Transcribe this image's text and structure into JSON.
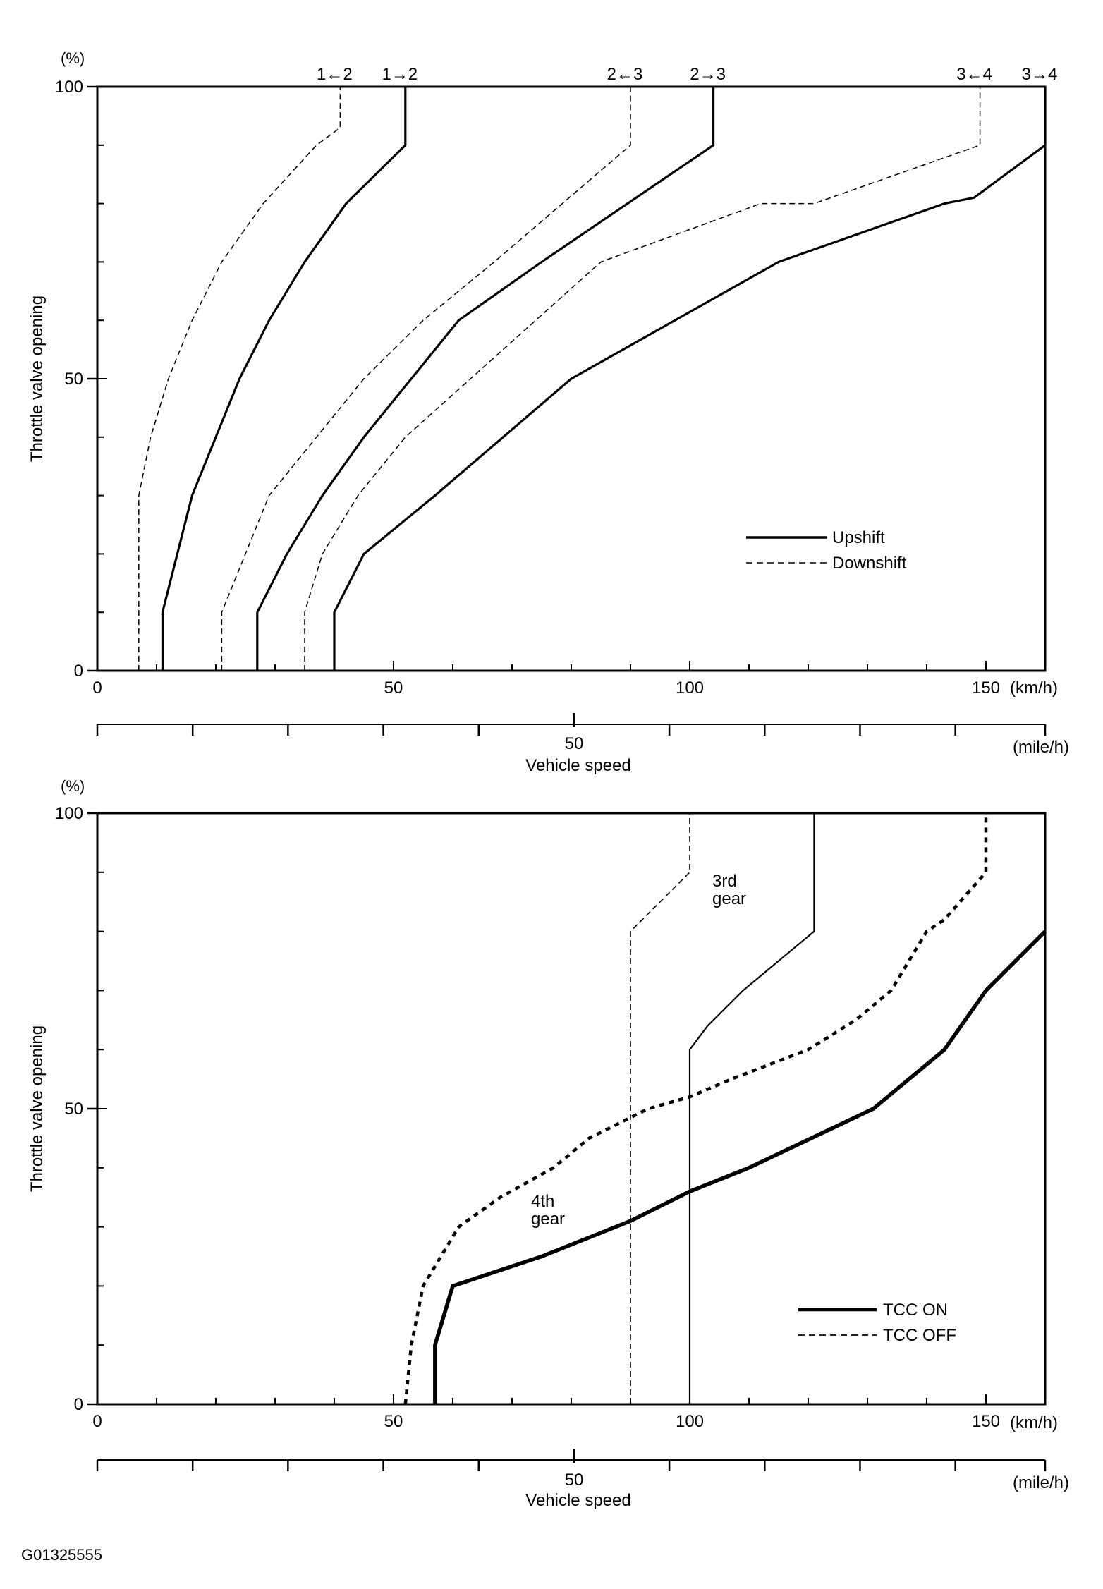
{
  "figure_id": "G01325555",
  "chart_data": [
    {
      "type": "line",
      "ylabel": "Throttle valve opening",
      "y_unit": "(%)",
      "ylim": [
        0,
        100
      ],
      "y_ticks": [
        0,
        50,
        100
      ],
      "xlim": [
        0,
        160
      ],
      "x_ticks": [
        0,
        50,
        100,
        150
      ],
      "x_unit": "(km/h)",
      "x2_ticks": [
        50
      ],
      "x2_unit": "(mile/h)",
      "xlabel": "Vehicle speed",
      "legend": {
        "position": "right-middle",
        "entries": [
          {
            "label": "Upshift",
            "style": "solid"
          },
          {
            "label": "Downshift",
            "style": "dashed"
          }
        ]
      },
      "top_labels": [
        {
          "text": "1←2",
          "x": 41
        },
        {
          "text": "1→2",
          "x": 52
        },
        {
          "text": "2←3",
          "x": 90
        },
        {
          "text": "2→3",
          "x": 104
        },
        {
          "text": "3←4",
          "x": 149
        },
        {
          "text": "3→4",
          "x": 160
        }
      ],
      "series": [
        {
          "label_ref": "1←2",
          "style": "dashed",
          "points": [
            [
              7,
              0
            ],
            [
              7,
              30
            ],
            [
              9,
              40
            ],
            [
              12,
              50
            ],
            [
              16,
              60
            ],
            [
              21,
              70
            ],
            [
              28,
              80
            ],
            [
              37,
              90
            ],
            [
              41,
              93
            ],
            [
              41,
              100
            ]
          ]
        },
        {
          "label_ref": "1→2",
          "style": "solid",
          "points": [
            [
              11,
              0
            ],
            [
              11,
              10
            ],
            [
              16,
              30
            ],
            [
              20,
              40
            ],
            [
              24,
              50
            ],
            [
              29,
              60
            ],
            [
              35,
              70
            ],
            [
              42,
              80
            ],
            [
              52,
              90
            ],
            [
              52,
              100
            ]
          ]
        },
        {
          "label_ref": "2←3",
          "style": "dashed",
          "points": [
            [
              21,
              0
            ],
            [
              21,
              10
            ],
            [
              25,
              20
            ],
            [
              29,
              30
            ],
            [
              37,
              40
            ],
            [
              45,
              50
            ],
            [
              55,
              60
            ],
            [
              67,
              70
            ],
            [
              90,
              90
            ],
            [
              90,
              100
            ]
          ]
        },
        {
          "label_ref": "2→3",
          "style": "solid",
          "points": [
            [
              27,
              0
            ],
            [
              27,
              10
            ],
            [
              32,
              20
            ],
            [
              38,
              30
            ],
            [
              45,
              40
            ],
            [
              53,
              50
            ],
            [
              61,
              60
            ],
            [
              75,
              70
            ],
            [
              104,
              90
            ],
            [
              104,
              100
            ]
          ]
        },
        {
          "label_ref": "3←4",
          "style": "dashed",
          "points": [
            [
              35,
              0
            ],
            [
              35,
              10
            ],
            [
              38,
              20
            ],
            [
              44,
              30
            ],
            [
              52,
              40
            ],
            [
              63,
              50
            ],
            [
              85,
              70
            ],
            [
              112,
              80
            ],
            [
              121,
              80
            ],
            [
              149,
              90
            ],
            [
              149,
              100
            ]
          ]
        },
        {
          "label_ref": "3→4",
          "style": "solid",
          "points": [
            [
              40,
              0
            ],
            [
              40,
              10
            ],
            [
              45,
              20
            ],
            [
              57,
              30
            ],
            [
              80,
              50
            ],
            [
              115,
              70
            ],
            [
              143,
              80
            ],
            [
              148,
              81
            ],
            [
              160,
              90
            ],
            [
              160,
              100
            ]
          ]
        }
      ]
    },
    {
      "type": "line",
      "ylabel": "Throttle valve opening",
      "y_unit": "(%)",
      "ylim": [
        0,
        100
      ],
      "y_ticks": [
        0,
        50,
        100
      ],
      "xlim": [
        0,
        160
      ],
      "x_ticks": [
        0,
        50,
        100,
        150
      ],
      "x_unit": "(km/h)",
      "x2_ticks": [
        50
      ],
      "x2_unit": "(mile/h)",
      "xlabel": "Vehicle speed",
      "legend": {
        "position": "bottom-right",
        "entries": [
          {
            "label": "TCC ON",
            "style": "solid"
          },
          {
            "label": "TCC OFF",
            "style": "dashed"
          }
        ]
      },
      "annotations": [
        {
          "line1": "3rd",
          "line2": "gear",
          "x": 104,
          "y": 88
        },
        {
          "line1": "4th",
          "line2": "gear",
          "x": 73,
          "y": 37
        }
      ],
      "series": [
        {
          "gear": "3rd",
          "style": "dashed",
          "weight": "thin",
          "points": [
            [
              90,
              0
            ],
            [
              90,
              80
            ],
            [
              100,
              90
            ],
            [
              100,
              100
            ]
          ]
        },
        {
          "gear": "3rd",
          "style": "solid",
          "weight": "thin",
          "points": [
            [
              100,
              0
            ],
            [
              100,
              60
            ],
            [
              103,
              64
            ],
            [
              109,
              70
            ],
            [
              121,
              80
            ],
            [
              121,
              100
            ]
          ]
        },
        {
          "gear": "4th",
          "style": "dashed",
          "weight": "bold",
          "points": [
            [
              52,
              0
            ],
            [
              53,
              10
            ],
            [
              55,
              20
            ],
            [
              61,
              30
            ],
            [
              68,
              35
            ],
            [
              77,
              40
            ],
            [
              83,
              45
            ],
            [
              93,
              50
            ],
            [
              100,
              52
            ],
            [
              107,
              55
            ],
            [
              120,
              60
            ],
            [
              128,
              65
            ],
            [
              134,
              70
            ],
            [
              140,
              80
            ],
            [
              143,
              82
            ],
            [
              150,
              90
            ],
            [
              150,
              100
            ]
          ]
        },
        {
          "gear": "4th",
          "style": "solid",
          "weight": "bold",
          "points": [
            [
              57,
              0
            ],
            [
              57,
              10
            ],
            [
              60,
              20
            ],
            [
              75,
              25
            ],
            [
              90,
              31
            ],
            [
              100,
              36
            ],
            [
              110,
              40
            ],
            [
              131,
              50
            ],
            [
              143,
              60
            ],
            [
              150,
              70
            ],
            [
              160,
              80
            ]
          ]
        }
      ]
    }
  ]
}
